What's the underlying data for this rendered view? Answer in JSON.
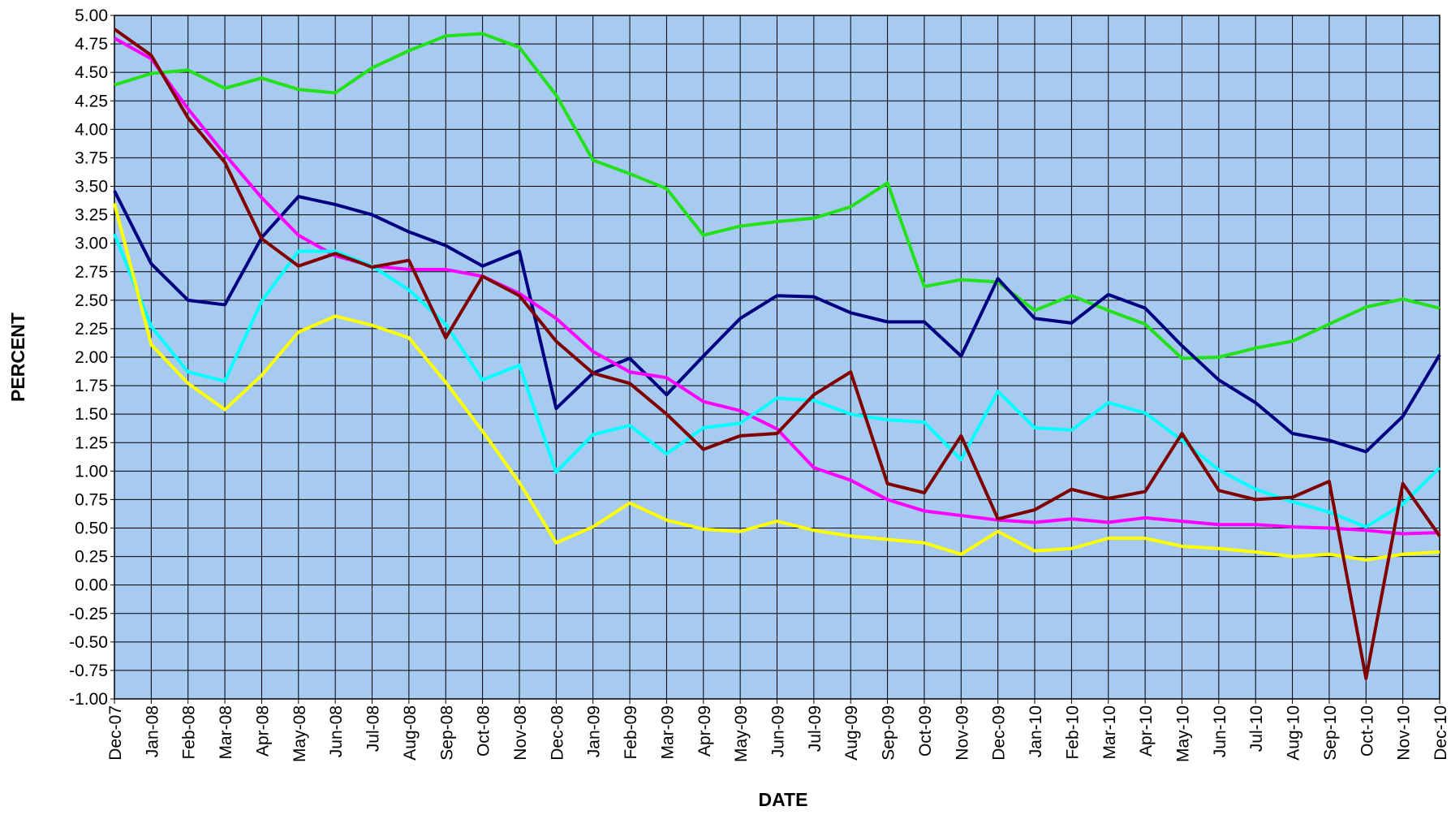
{
  "chart_data": {
    "type": "line",
    "x_label": "DATE",
    "y_label": "PERCENT",
    "categories": [
      "Dec-07",
      "Jan-08",
      "Feb-08",
      "Mar-08",
      "Apr-08",
      "May-08",
      "Jun-08",
      "Jul-08",
      "Aug-08",
      "Sep-08",
      "Oct-08",
      "Nov-08",
      "Dec-08",
      "Jan-09",
      "Feb-09",
      "Mar-09",
      "Apr-09",
      "May-09",
      "Jun-09",
      "Jul-09",
      "Aug-09",
      "Sep-09",
      "Oct-09",
      "Nov-09",
      "Dec-09",
      "Jan-10",
      "Feb-10",
      "Mar-10",
      "Apr-10",
      "May-10",
      "Jun-10",
      "Jul-10",
      "Aug-10",
      "Sep-10",
      "Oct-10",
      "Nov-10",
      "Dec-10"
    ],
    "series": [
      {
        "color": "#22e01a",
        "values": [
          4.39,
          4.49,
          4.52,
          4.36,
          4.45,
          4.35,
          4.32,
          4.54,
          4.69,
          4.82,
          4.84,
          4.72,
          4.3,
          3.73,
          3.61,
          3.48,
          3.07,
          3.15,
          3.19,
          3.22,
          3.32,
          3.53,
          2.62,
          2.68,
          2.66,
          2.41,
          2.54,
          2.41,
          2.29,
          1.99,
          2.0,
          2.08,
          2.14,
          2.29,
          2.44,
          2.51,
          2.43
        ]
      },
      {
        "color": "#000080",
        "values": [
          3.46,
          2.82,
          2.5,
          2.46,
          3.05,
          3.41,
          3.34,
          3.25,
          3.1,
          2.98,
          2.8,
          2.93,
          1.55,
          1.86,
          1.99,
          1.67,
          2.01,
          2.34,
          2.54,
          2.53,
          2.39,
          2.31,
          2.31,
          2.01,
          2.69,
          2.34,
          2.3,
          2.55,
          2.43,
          2.1,
          1.8,
          1.6,
          1.33,
          1.27,
          1.17,
          1.48,
          2.02
        ]
      },
      {
        "color": "#ff00ff",
        "values": [
          4.8,
          4.62,
          4.18,
          3.78,
          3.4,
          3.07,
          2.89,
          2.8,
          2.77,
          2.77,
          2.71,
          2.56,
          2.34,
          2.05,
          1.87,
          1.82,
          1.61,
          1.53,
          1.37,
          1.03,
          0.92,
          0.75,
          0.65,
          0.61,
          0.57,
          0.55,
          0.58,
          0.55,
          0.59,
          0.56,
          0.53,
          0.53,
          0.51,
          0.5,
          0.48,
          0.45,
          0.46
        ]
      },
      {
        "color": "#00ffff",
        "values": [
          3.08,
          2.27,
          1.87,
          1.79,
          2.49,
          2.93,
          2.93,
          2.8,
          2.59,
          2.29,
          1.8,
          1.93,
          0.99,
          1.32,
          1.4,
          1.15,
          1.38,
          1.42,
          1.64,
          1.62,
          1.5,
          1.45,
          1.43,
          1.1,
          1.7,
          1.38,
          1.36,
          1.6,
          1.51,
          1.27,
          1.01,
          0.84,
          0.73,
          0.64,
          0.51,
          0.71,
          1.03
        ]
      },
      {
        "color": "#ffff00",
        "values": [
          3.35,
          2.11,
          1.77,
          1.54,
          1.84,
          2.22,
          2.36,
          2.28,
          2.17,
          1.78,
          1.35,
          0.9,
          0.37,
          0.51,
          0.72,
          0.57,
          0.49,
          0.47,
          0.56,
          0.48,
          0.43,
          0.4,
          0.37,
          0.27,
          0.47,
          0.3,
          0.32,
          0.41,
          0.41,
          0.34,
          0.32,
          0.29,
          0.25,
          0.27,
          0.22,
          0.27,
          0.29
        ]
      },
      {
        "color": "#800000",
        "values": [
          4.88,
          4.65,
          4.1,
          3.71,
          3.04,
          2.8,
          2.91,
          2.79,
          2.85,
          2.17,
          2.71,
          2.54,
          2.14,
          1.86,
          1.77,
          1.5,
          1.19,
          1.31,
          1.33,
          1.67,
          1.87,
          0.89,
          0.81,
          1.31,
          0.58,
          0.66,
          0.84,
          0.76,
          0.82,
          1.33,
          0.83,
          0.75,
          0.77,
          0.91,
          -0.82,
          0.89,
          0.43
        ]
      }
    ],
    "ylim": [
      -1,
      5
    ],
    "yticks": [
      {
        "value": -1,
        "label": "-1.00"
      },
      {
        "value": -0.75,
        "label": "-0.75"
      },
      {
        "value": -0.5,
        "label": "-0.50"
      },
      {
        "value": -0.25,
        "label": "-0.25"
      },
      {
        "value": 0,
        "label": "0.00"
      },
      {
        "value": 0.25,
        "label": "0.25"
      },
      {
        "value": 0.5,
        "label": "0.50"
      },
      {
        "value": 0.75,
        "label": "0.75"
      },
      {
        "value": 1,
        "label": "1.00"
      },
      {
        "value": 1.25,
        "label": "1.25"
      },
      {
        "value": 1.5,
        "label": "1.50"
      },
      {
        "value": 1.75,
        "label": "1.75"
      },
      {
        "value": 2,
        "label": "2.00"
      },
      {
        "value": 2.25,
        "label": "2.25"
      },
      {
        "value": 2.5,
        "label": "2.50"
      },
      {
        "value": 2.75,
        "label": "2.75"
      },
      {
        "value": 3,
        "label": "3.00"
      },
      {
        "value": 3.25,
        "label": "3.25"
      },
      {
        "value": 3.5,
        "label": "3.50"
      },
      {
        "value": 3.75,
        "label": "3.75"
      },
      {
        "value": 4,
        "label": "4.00"
      },
      {
        "value": 4.25,
        "label": "4.25"
      },
      {
        "value": 4.5,
        "label": "4.50"
      },
      {
        "value": 4.75,
        "label": "4.75"
      },
      {
        "value": 5,
        "label": "5.00"
      }
    ],
    "grid": true,
    "plot_background": "#a6caf0"
  }
}
